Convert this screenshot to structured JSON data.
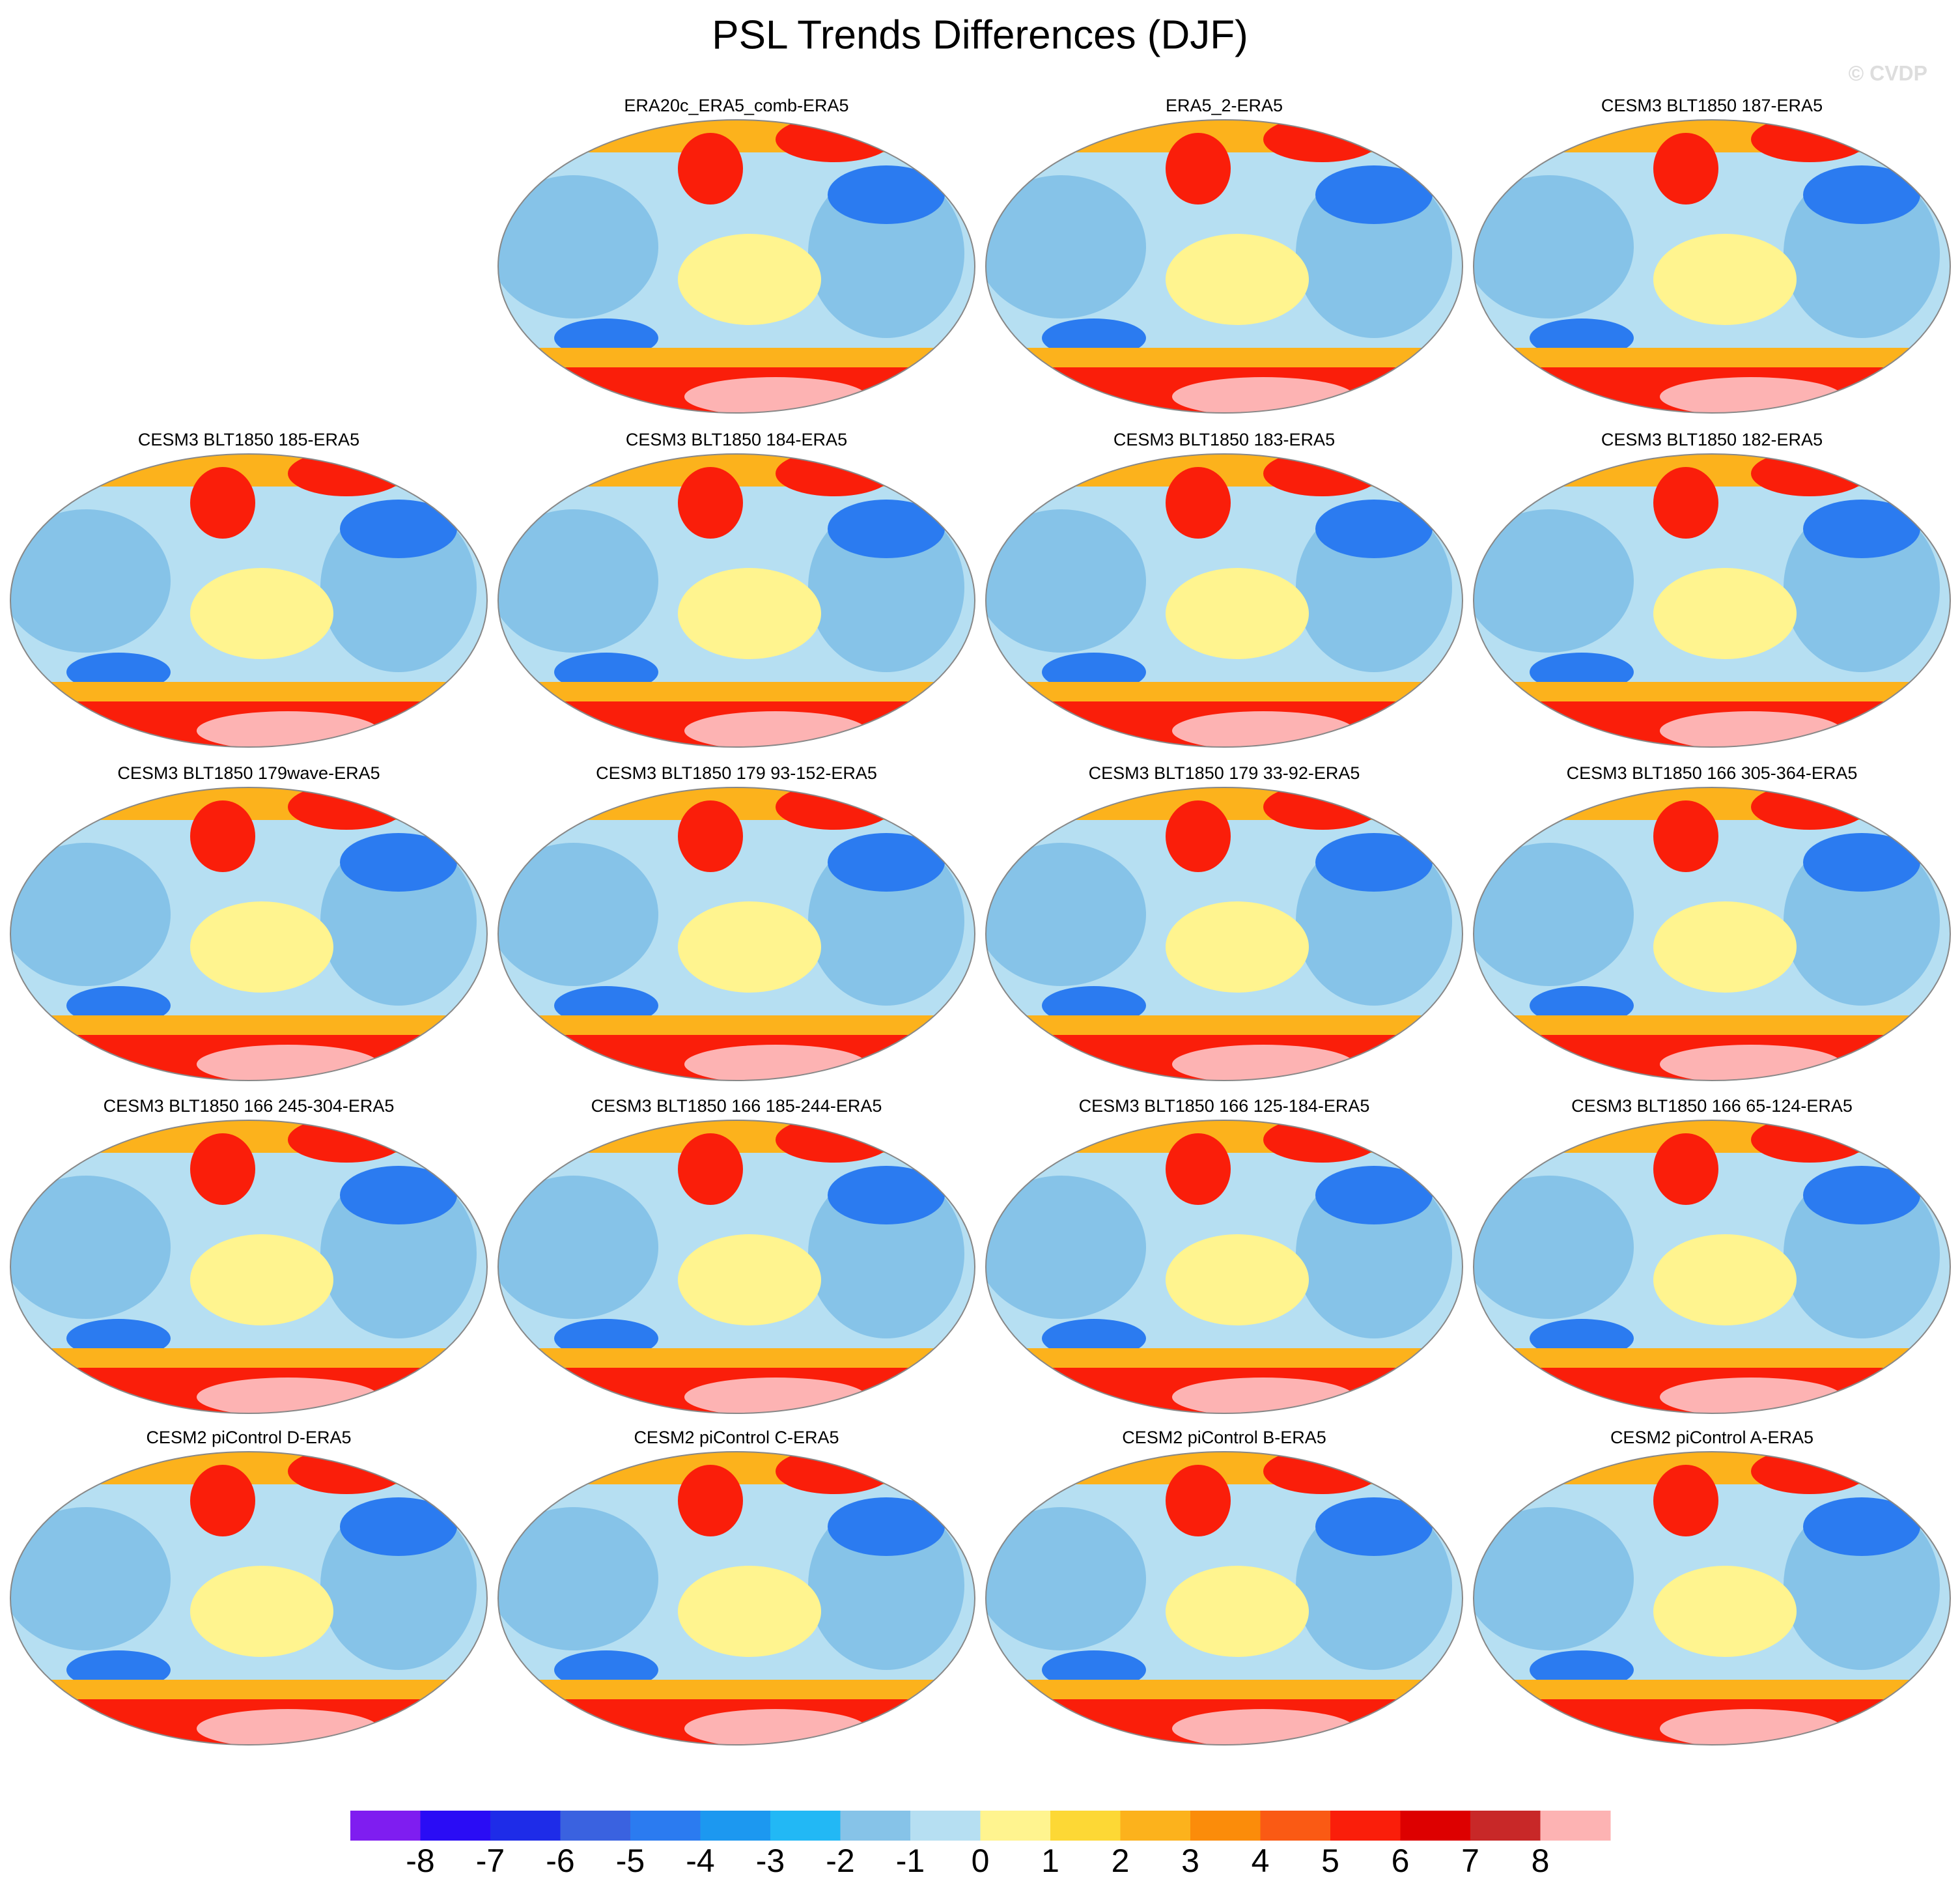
{
  "chart_data": {
    "type": "map_panels",
    "title": "PSL Trends Differences (DJF)",
    "watermark": "© CVDP",
    "panels": [
      {
        "title": "ERA20c_ERA5_comb-ERA5"
      },
      {
        "title": "ERA5_2-ERA5"
      },
      {
        "title": "CESM3 BLT1850 187-ERA5"
      },
      {
        "title": "CESM3 BLT1850 185-ERA5"
      },
      {
        "title": "CESM3 BLT1850 184-ERA5"
      },
      {
        "title": "CESM3 BLT1850 183-ERA5"
      },
      {
        "title": "CESM3 BLT1850 182-ERA5"
      },
      {
        "title": "CESM3 BLT1850 179wave-ERA5"
      },
      {
        "title": "CESM3 BLT1850 179 93-152-ERA5"
      },
      {
        "title": "CESM3 BLT1850 179 33-92-ERA5"
      },
      {
        "title": "CESM3 BLT1850 166 305-364-ERA5"
      },
      {
        "title": "CESM3 BLT1850 166 245-304-ERA5"
      },
      {
        "title": "CESM3 BLT1850 166 185-244-ERA5"
      },
      {
        "title": "CESM3 BLT1850 166 125-184-ERA5"
      },
      {
        "title": "CESM3 BLT1850 166 65-124-ERA5"
      },
      {
        "title": "CESM2 piControl D-ERA5"
      },
      {
        "title": "CESM2 piControl C-ERA5"
      },
      {
        "title": "CESM2 piControl B-ERA5"
      },
      {
        "title": "CESM2 piControl A-ERA5"
      }
    ],
    "colorbar": {
      "colors": [
        "#7f1df0",
        "#2a0cf5",
        "#1e2ce8",
        "#3a62e0",
        "#2b7bf0",
        "#1c98f0",
        "#22b8f5",
        "#86c3e8",
        "#b6dff2",
        "#fff48f",
        "#fdd835",
        "#fcb21c",
        "#fb8c0a",
        "#fa5a14",
        "#fa1e0a",
        "#dd0000",
        "#c82828",
        "#fdb3b3"
      ],
      "ticks": [
        -8,
        -7,
        -6,
        -5,
        -4,
        -3,
        -2,
        -1,
        0,
        1,
        2,
        3,
        4,
        5,
        6,
        7,
        8
      ]
    }
  }
}
